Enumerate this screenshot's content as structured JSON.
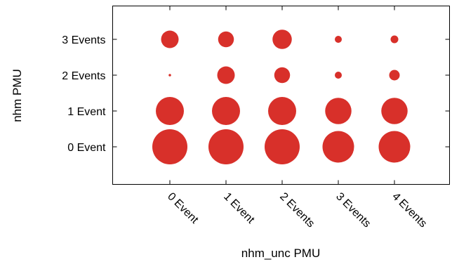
{
  "chart_data": {
    "type": "scatter",
    "xlabel": "nhm_unc PMU",
    "ylabel": "nhm PMU",
    "x_categories": [
      "0 Event",
      "1 Event",
      "2 Events",
      "3 Events",
      "4 Events"
    ],
    "y_categories": [
      "0 Event",
      "1 Event",
      "2 Events",
      "3 Events"
    ],
    "marker_color": "#d8302a",
    "points": [
      {
        "x": "0 Event",
        "y": "0 Event",
        "size": 1.0
      },
      {
        "x": "1 Event",
        "y": "0 Event",
        "size": 1.0
      },
      {
        "x": "2 Events",
        "y": "0 Event",
        "size": 1.0
      },
      {
        "x": "3 Events",
        "y": "0 Event",
        "size": 0.9
      },
      {
        "x": "4 Events",
        "y": "0 Event",
        "size": 0.9
      },
      {
        "x": "0 Event",
        "y": "1 Event",
        "size": 0.8
      },
      {
        "x": "1 Event",
        "y": "1 Event",
        "size": 0.8
      },
      {
        "x": "2 Events",
        "y": "1 Event",
        "size": 0.8
      },
      {
        "x": "3 Events",
        "y": "1 Event",
        "size": 0.75
      },
      {
        "x": "4 Events",
        "y": "1 Event",
        "size": 0.75
      },
      {
        "x": "0 Event",
        "y": "2 Events",
        "size": 0.07
      },
      {
        "x": "1 Event",
        "y": "2 Events",
        "size": 0.5
      },
      {
        "x": "2 Events",
        "y": "2 Events",
        "size": 0.45
      },
      {
        "x": "3 Events",
        "y": "2 Events",
        "size": 0.2
      },
      {
        "x": "4 Events",
        "y": "2 Events",
        "size": 0.3
      },
      {
        "x": "0 Event",
        "y": "3 Events",
        "size": 0.5
      },
      {
        "x": "1 Event",
        "y": "3 Events",
        "size": 0.45
      },
      {
        "x": "2 Events",
        "y": "3 Events",
        "size": 0.55
      },
      {
        "x": "3 Events",
        "y": "3 Events",
        "size": 0.2
      },
      {
        "x": "4 Events",
        "y": "3 Events",
        "size": 0.22
      }
    ],
    "grid": false,
    "legend": "none"
  }
}
